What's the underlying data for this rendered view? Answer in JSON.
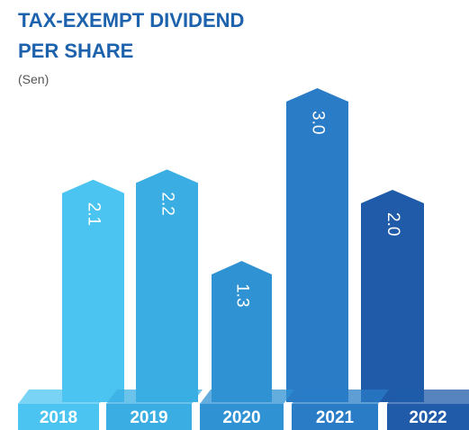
{
  "chart_data": {
    "type": "bar",
    "title": [
      "TAX-EXEMPT DIVIDEND",
      "PER SHARE"
    ],
    "subtitle": "(Sen)",
    "categories": [
      "2018",
      "2019",
      "2020",
      "2021",
      "2022"
    ],
    "values": [
      2.1,
      2.2,
      1.3,
      3.0,
      2.0
    ],
    "value_labels": [
      "2.1",
      "2.2",
      "1.3",
      "3.0",
      "2.0"
    ],
    "colors": [
      "#4cc4f1",
      "#3aaee3",
      "#2f92d3",
      "#2a7cc7",
      "#1f5ba9"
    ]
  }
}
